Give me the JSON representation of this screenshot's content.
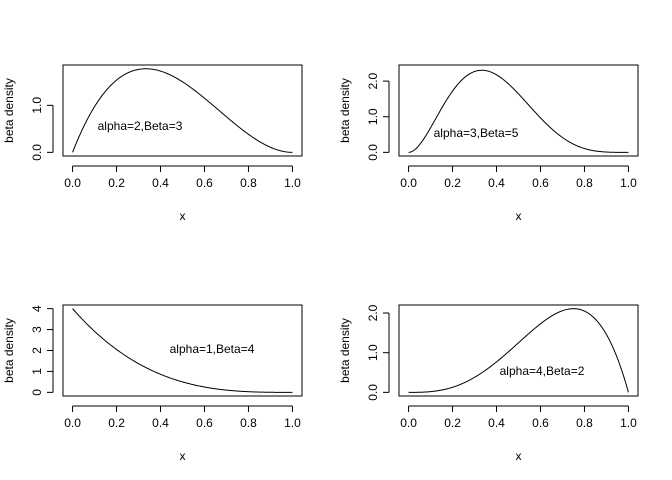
{
  "chart_data": [
    {
      "type": "line",
      "xlabel": "x",
      "ylabel": "beta density",
      "annotation": "alpha=2,Beta=3",
      "alpha": 2,
      "beta": 3,
      "xlim": [
        0,
        1
      ],
      "ylim": [
        0,
        1.78
      ],
      "x_ticks": [
        0.0,
        0.2,
        0.4,
        0.6,
        0.8,
        1.0
      ],
      "x_tick_labels": [
        "0.0",
        "0.2",
        "0.4",
        "0.6",
        "0.8",
        "1.0"
      ],
      "y_ticks": [
        0,
        1.0
      ],
      "y_tick_labels": [
        "0.0",
        "1.0"
      ],
      "x": [
        0,
        0.1,
        0.2,
        0.3,
        0.4,
        0.5,
        0.6,
        0.7,
        0.8,
        0.9,
        1.0
      ],
      "y": [
        0,
        0.972,
        1.536,
        1.764,
        1.728,
        1.5,
        1.152,
        0.756,
        0.384,
        0.108,
        0
      ]
    },
    {
      "type": "line",
      "xlabel": "x",
      "ylabel": "beta density",
      "annotation": "alpha=3,Beta=5",
      "alpha": 3,
      "beta": 5,
      "xlim": [
        0,
        1
      ],
      "ylim": [
        0,
        2.35
      ],
      "x_ticks": [
        0.0,
        0.2,
        0.4,
        0.6,
        0.8,
        1.0
      ],
      "x_tick_labels": [
        "0.0",
        "0.2",
        "0.4",
        "0.6",
        "0.8",
        "1.0"
      ],
      "y_ticks": [
        0,
        1.0,
        2.0
      ],
      "y_tick_labels": [
        "0.0",
        "1.0",
        "2.0"
      ],
      "x": [
        0,
        0.1,
        0.2,
        0.3,
        0.4,
        0.5,
        0.6,
        0.7,
        0.8,
        0.9,
        1.0
      ],
      "y": [
        0,
        0.413,
        1.468,
        2.269,
        2.322,
        1.641,
        0.774,
        0.216,
        0.029,
        0.001,
        0
      ]
    },
    {
      "type": "line",
      "xlabel": "x",
      "ylabel": "beta density",
      "annotation": "alpha=1,Beta=4",
      "alpha": 1,
      "beta": 4,
      "xlim": [
        0,
        1
      ],
      "ylim": [
        0,
        4
      ],
      "x_ticks": [
        0.0,
        0.2,
        0.4,
        0.6,
        0.8,
        1.0
      ],
      "x_tick_labels": [
        "0.0",
        "0.2",
        "0.4",
        "0.6",
        "0.8",
        "1.0"
      ],
      "y_ticks": [
        0,
        1,
        2,
        3,
        4
      ],
      "y_tick_labels": [
        "0",
        "1",
        "2",
        "3",
        "4"
      ],
      "x": [
        0,
        0.1,
        0.2,
        0.3,
        0.4,
        0.5,
        0.6,
        0.7,
        0.8,
        0.9,
        1.0
      ],
      "y": [
        4,
        2.916,
        2.048,
        1.372,
        0.864,
        0.5,
        0.256,
        0.108,
        0.032,
        0.004,
        0
      ]
    },
    {
      "type": "line",
      "xlabel": "x",
      "ylabel": "beta density",
      "annotation": "alpha=4,Beta=2",
      "alpha": 4,
      "beta": 2,
      "xlim": [
        0,
        1
      ],
      "ylim": [
        0,
        2.11
      ],
      "x_ticks": [
        0.0,
        0.2,
        0.4,
        0.6,
        0.8,
        1.0
      ],
      "x_tick_labels": [
        "0.0",
        "0.2",
        "0.4",
        "0.6",
        "0.8",
        "1.0"
      ],
      "y_ticks": [
        0,
        1.0,
        2.0
      ],
      "y_tick_labels": [
        "0.0",
        "1.0",
        "2.0"
      ],
      "x": [
        0,
        0.1,
        0.2,
        0.3,
        0.4,
        0.5,
        0.6,
        0.7,
        0.8,
        0.9,
        1.0
      ],
      "y": [
        0,
        0.018,
        0.128,
        0.378,
        0.768,
        1.25,
        1.728,
        2.058,
        2.048,
        1.458,
        0
      ]
    }
  ]
}
